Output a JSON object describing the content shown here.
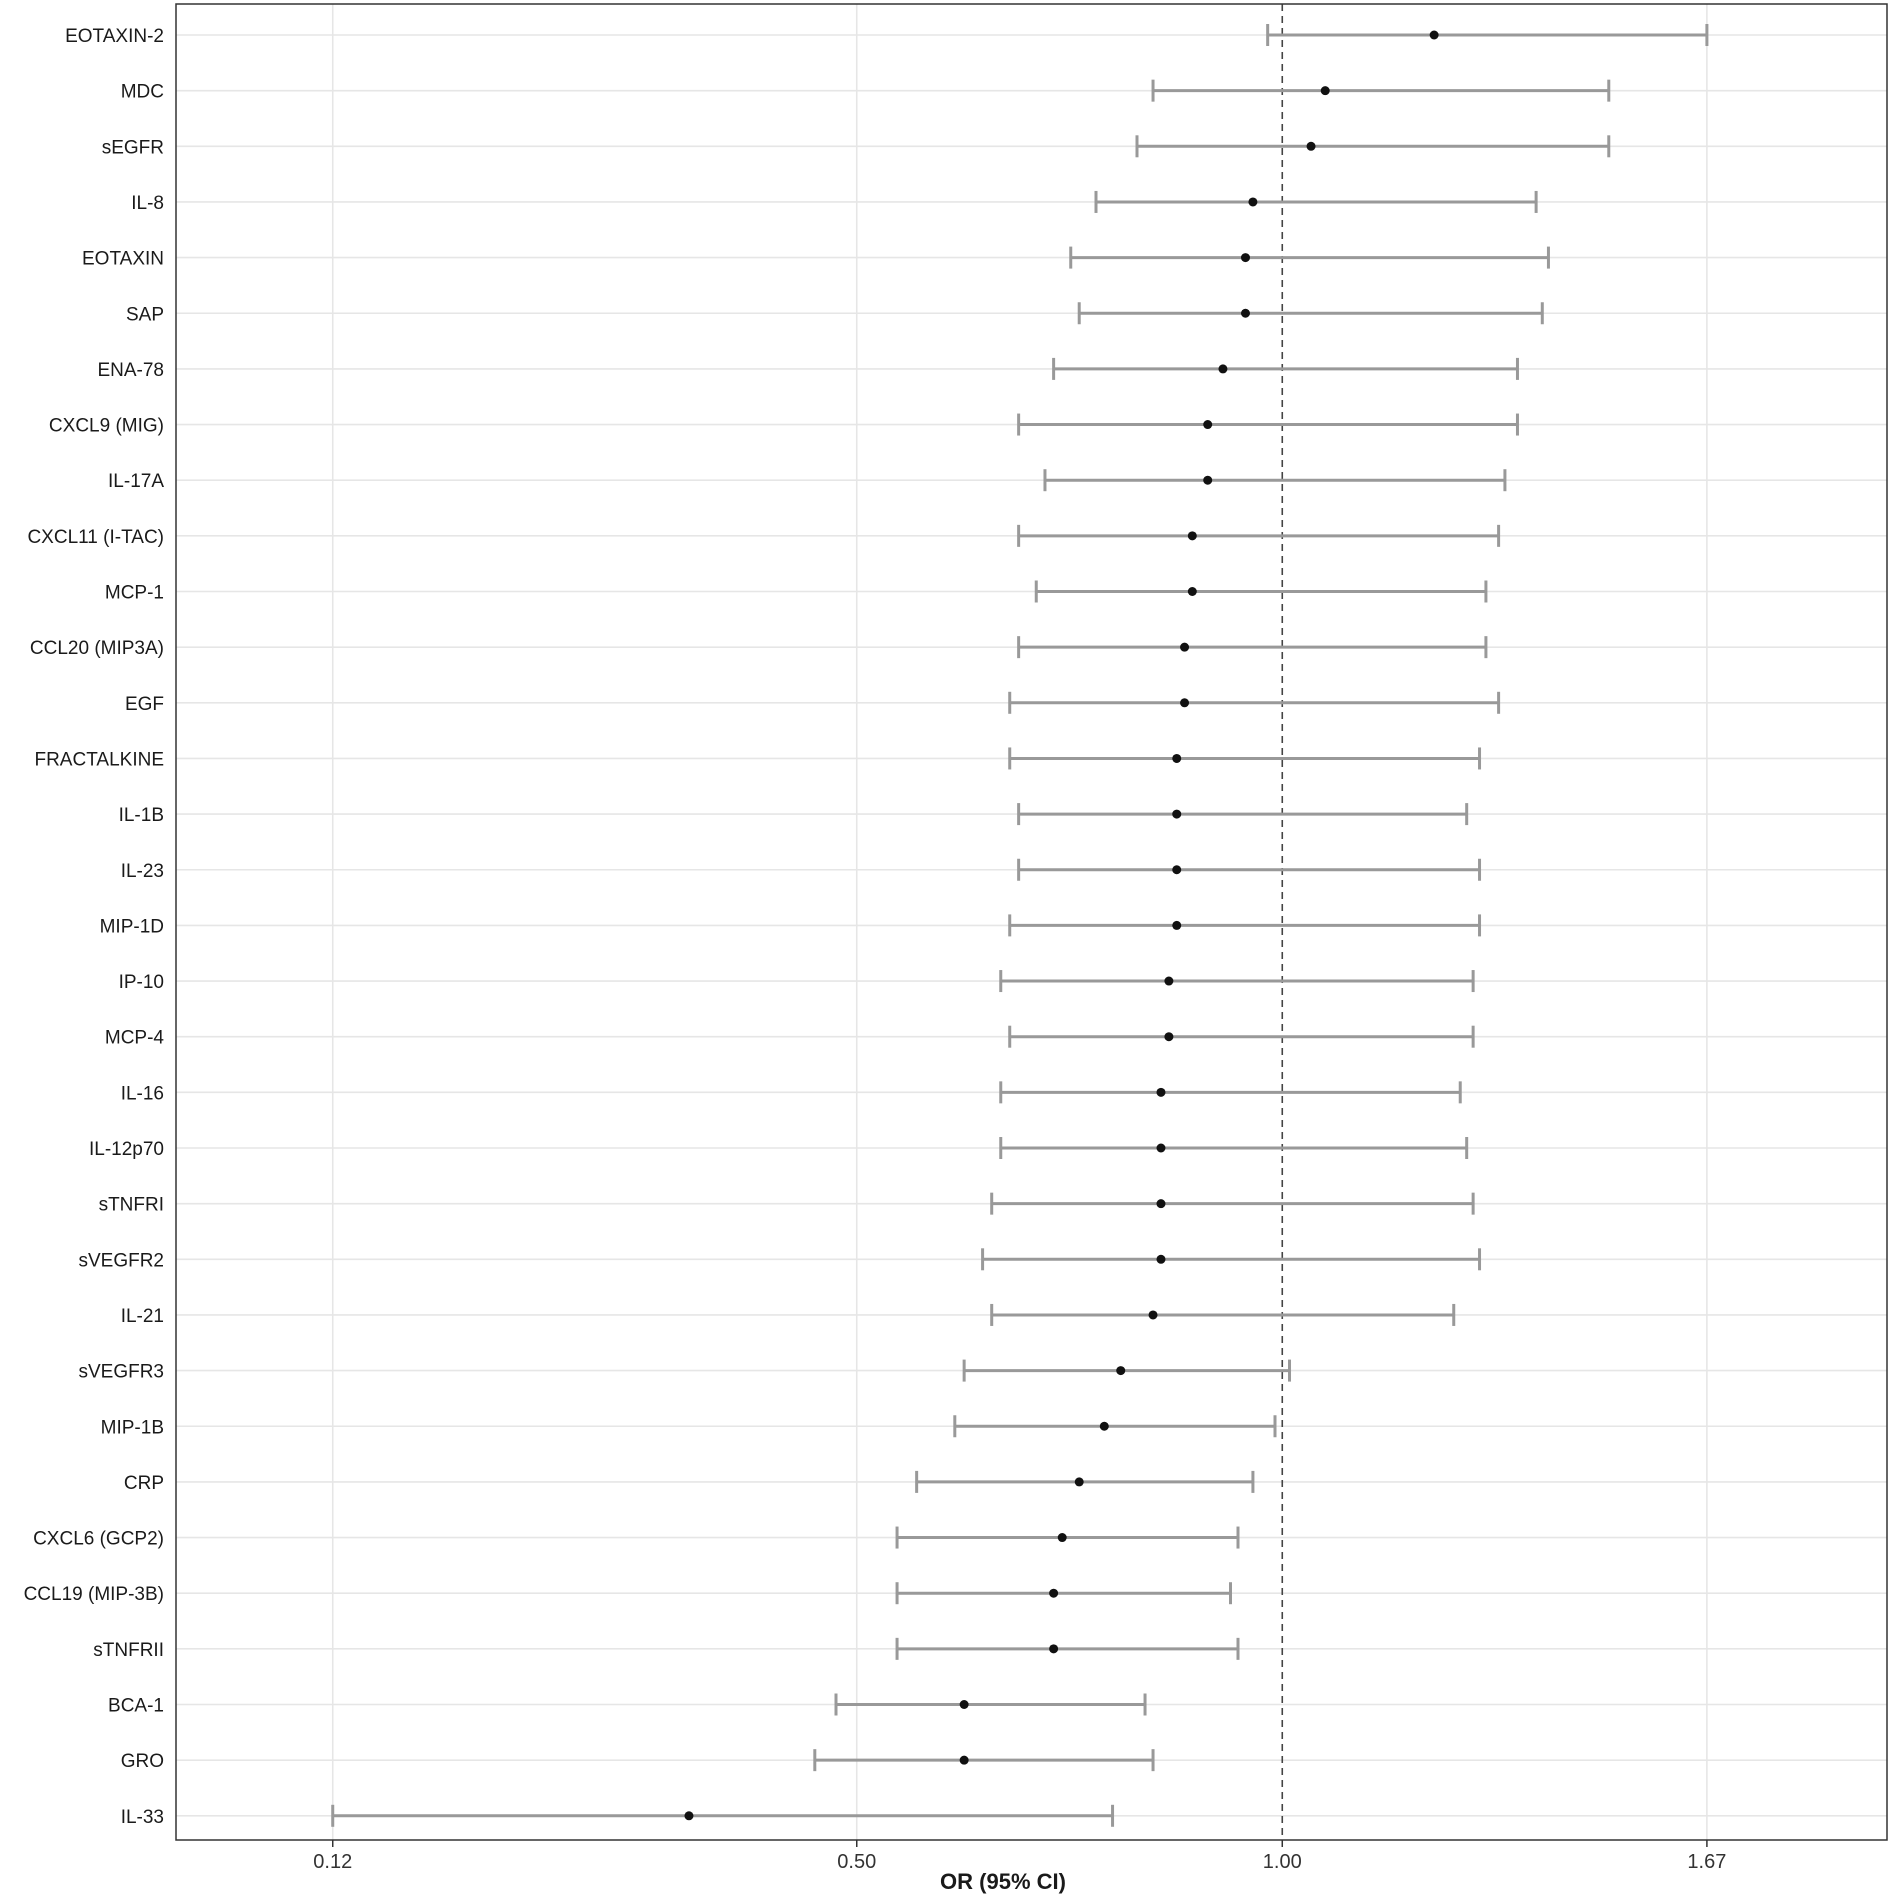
{
  "chart_data": {
    "type": "forest",
    "xlabel": "OR (95% CI)",
    "x_scale": "sqrt",
    "xlim": [
      0.06,
      2.05
    ],
    "x_ticks": [
      0.12,
      0.5,
      1.0,
      1.67
    ],
    "x_tick_labels": [
      "0.12",
      "0.50",
      "1.00",
      "1.67"
    ],
    "reference_line": 1.0,
    "grid": true,
    "colors": {
      "ci_line": "#999999",
      "point": "#111111",
      "grid": "#e6e6e6",
      "reference": "#444444",
      "frame": "#333333"
    },
    "rows": [
      {
        "label": "EOTAXIN-2",
        "or": 1.22,
        "lower": 0.98,
        "upper": 1.67
      },
      {
        "label": "MDC",
        "or": 1.06,
        "lower": 0.83,
        "upper": 1.5
      },
      {
        "label": "sEGFR",
        "or": 1.04,
        "lower": 0.81,
        "upper": 1.5
      },
      {
        "label": "IL-8",
        "or": 0.96,
        "lower": 0.76,
        "upper": 1.38
      },
      {
        "label": "EOTAXIN",
        "or": 0.95,
        "lower": 0.73,
        "upper": 1.4
      },
      {
        "label": "SAP",
        "or": 0.95,
        "lower": 0.74,
        "upper": 1.39
      },
      {
        "label": "ENA-78",
        "or": 0.92,
        "lower": 0.71,
        "upper": 1.35
      },
      {
        "label": "CXCL9 (MIG)",
        "or": 0.9,
        "lower": 0.67,
        "upper": 1.35
      },
      {
        "label": "IL-17A",
        "or": 0.9,
        "lower": 0.7,
        "upper": 1.33
      },
      {
        "label": "CXCL11 (I-TAC)",
        "or": 0.88,
        "lower": 0.67,
        "upper": 1.32
      },
      {
        "label": "MCP-1",
        "or": 0.88,
        "lower": 0.69,
        "upper": 1.3
      },
      {
        "label": "CCL20 (MIP3A)",
        "or": 0.87,
        "lower": 0.67,
        "upper": 1.3
      },
      {
        "label": "EGF",
        "or": 0.87,
        "lower": 0.66,
        "upper": 1.32
      },
      {
        "label": "FRACTALKINE",
        "or": 0.86,
        "lower": 0.66,
        "upper": 1.29
      },
      {
        "label": "IL-1B",
        "or": 0.86,
        "lower": 0.67,
        "upper": 1.27
      },
      {
        "label": "IL-23",
        "or": 0.86,
        "lower": 0.67,
        "upper": 1.29
      },
      {
        "label": "MIP-1D",
        "or": 0.86,
        "lower": 0.66,
        "upper": 1.29
      },
      {
        "label": "IP-10",
        "or": 0.85,
        "lower": 0.65,
        "upper": 1.28
      },
      {
        "label": "MCP-4",
        "or": 0.85,
        "lower": 0.66,
        "upper": 1.28
      },
      {
        "label": "IL-16",
        "or": 0.84,
        "lower": 0.65,
        "upper": 1.26
      },
      {
        "label": "IL-12p70",
        "or": 0.84,
        "lower": 0.65,
        "upper": 1.27
      },
      {
        "label": "sTNFRI",
        "or": 0.84,
        "lower": 0.64,
        "upper": 1.28
      },
      {
        "label": "sVEGFR2",
        "or": 0.84,
        "lower": 0.63,
        "upper": 1.29
      },
      {
        "label": "IL-21",
        "or": 0.83,
        "lower": 0.64,
        "upper": 1.25
      },
      {
        "label": "sVEGFR3",
        "or": 0.79,
        "lower": 0.61,
        "upper": 1.01
      },
      {
        "label": "MIP-1B",
        "or": 0.77,
        "lower": 0.6,
        "upper": 0.99
      },
      {
        "label": "CRP",
        "or": 0.74,
        "lower": 0.56,
        "upper": 0.96
      },
      {
        "label": "CXCL6 (GCP2)",
        "or": 0.72,
        "lower": 0.54,
        "upper": 0.94
      },
      {
        "label": "CCL19 (MIP-3B)",
        "or": 0.71,
        "lower": 0.54,
        "upper": 0.93
      },
      {
        "label": "sTNFRII",
        "or": 0.71,
        "lower": 0.54,
        "upper": 0.94
      },
      {
        "label": "BCA-1",
        "or": 0.61,
        "lower": 0.48,
        "upper": 0.82
      },
      {
        "label": "GRO",
        "or": 0.61,
        "lower": 0.46,
        "upper": 0.83
      },
      {
        "label": "IL-33",
        "or": 0.35,
        "lower": 0.12,
        "upper": 0.78
      }
    ]
  }
}
